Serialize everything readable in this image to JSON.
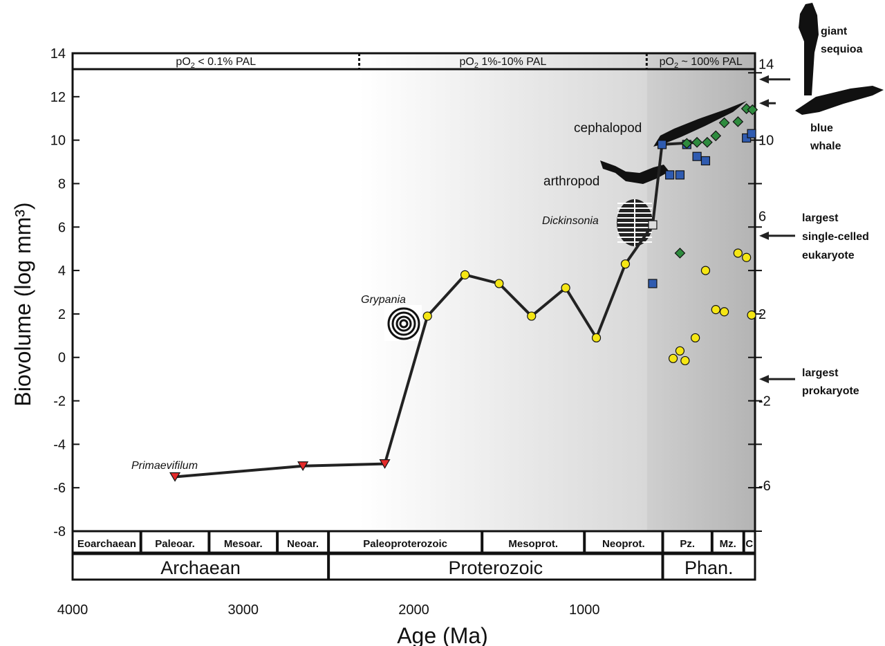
{
  "chart_data": {
    "type": "scatter",
    "xlabel": "Age (Ma)",
    "ylabel": "Biovolume (log mm³)",
    "xlim": [
      4000,
      0
    ],
    "ylim": [
      -8,
      14
    ],
    "x_ticks": [
      "4000",
      "3000",
      "2000",
      "1000"
    ],
    "y_ticks": [
      "14",
      "12",
      "10",
      "8",
      "6",
      "4",
      "2",
      "0",
      "-2",
      "-4",
      "-6",
      "-8"
    ],
    "right_axis_ticks": [
      "14",
      "10",
      "6",
      "2",
      "-2",
      "-6"
    ],
    "oxygen_bands": [
      {
        "label_pre": "pO",
        "label_post": " < 0.1% PAL",
        "from": 4000,
        "to": 2320
      },
      {
        "label_pre": "pO",
        "label_post": " 1%-10% PAL",
        "from": 2320,
        "to": 635
      },
      {
        "label_pre": "pO",
        "label_post": " ~ 100% PAL",
        "from": 635,
        "to": 0
      }
    ],
    "oxygen_subscript": "2",
    "eras": [
      {
        "label": "Eoarchaean",
        "from": 4000,
        "to": 3600
      },
      {
        "label": "Paleoar.",
        "from": 3600,
        "to": 3200
      },
      {
        "label": "Mesoar.",
        "from": 3200,
        "to": 2800
      },
      {
        "label": "Neoar.",
        "from": 2800,
        "to": 2500
      },
      {
        "label": "Paleoproterozoic",
        "from": 2500,
        "to": 1600
      },
      {
        "label": "Mesoprot.",
        "from": 1600,
        "to": 1000
      },
      {
        "label": "Neoprot.",
        "from": 1000,
        "to": 541
      },
      {
        "label": "Pz.",
        "from": 541,
        "to": 252
      },
      {
        "label": "Mz.",
        "from": 252,
        "to": 66
      },
      {
        "label": "C",
        "from": 66,
        "to": 0
      }
    ],
    "eons": [
      {
        "label": "Archaean",
        "from": 4000,
        "to": 2500
      },
      {
        "label": "Proterozoic",
        "from": 2500,
        "to": 541
      },
      {
        "label": "Phan.",
        "from": 541,
        "to": 0
      }
    ],
    "max_size_line": [
      [
        3400,
        -5.5
      ],
      [
        2650,
        -5.0
      ],
      [
        2170,
        -4.9
      ],
      [
        1920,
        1.9
      ],
      [
        1700,
        3.8
      ],
      [
        1500,
        3.4
      ],
      [
        1310,
        1.9
      ],
      [
        1110,
        3.2
      ],
      [
        930,
        0.9
      ],
      [
        760,
        4.3
      ],
      [
        600,
        6.1
      ],
      [
        545,
        9.8
      ],
      [
        330,
        9.9
      ]
    ],
    "series": [
      {
        "marker": "triangle",
        "color": "#e52b2b",
        "points": [
          [
            3400,
            -5.5
          ],
          [
            2650,
            -5.0
          ],
          [
            2170,
            -4.9
          ]
        ]
      },
      {
        "marker": "circle",
        "color": "#f5e614",
        "points": [
          [
            1920,
            1.9
          ],
          [
            1700,
            3.8
          ],
          [
            1500,
            3.4
          ],
          [
            1310,
            1.9
          ],
          [
            1110,
            3.2
          ],
          [
            930,
            0.9
          ],
          [
            760,
            4.3
          ],
          [
            480,
            -0.05
          ],
          [
            440,
            0.3
          ],
          [
            410,
            -0.15
          ],
          [
            350,
            0.9
          ],
          [
            290,
            4.0
          ],
          [
            230,
            2.2
          ],
          [
            180,
            2.1
          ],
          [
            100,
            4.8
          ],
          [
            50,
            4.6
          ],
          [
            20,
            1.95
          ]
        ]
      },
      {
        "marker": "square",
        "color": "#2f5bb0",
        "points": [
          [
            600,
            3.4
          ],
          [
            545,
            9.8
          ],
          [
            440,
            8.4
          ],
          [
            500,
            8.4
          ],
          [
            340,
            9.25
          ],
          [
            290,
            9.05
          ],
          [
            400,
            9.8
          ],
          [
            50,
            10.1
          ],
          [
            20,
            10.3
          ]
        ]
      },
      {
        "marker": "square",
        "color": "#dddddd",
        "points": [
          [
            600,
            6.1
          ]
        ]
      },
      {
        "marker": "diamond",
        "color": "#2e8b3e",
        "points": [
          [
            440,
            4.8
          ],
          [
            400,
            9.85
          ],
          [
            340,
            9.9
          ],
          [
            280,
            9.9
          ],
          [
            230,
            10.2
          ],
          [
            180,
            10.8
          ],
          [
            100,
            10.85
          ],
          [
            50,
            11.45
          ],
          [
            15,
            11.4
          ]
        ]
      }
    ],
    "annotations": [
      {
        "text": "Primaevifilum",
        "style": "italic"
      },
      {
        "text": "Grypania",
        "style": "italic"
      },
      {
        "text": "Dickinsonia",
        "style": "italic"
      },
      {
        "text": "arthropod",
        "style": "normal"
      },
      {
        "text": "cephalopod",
        "style": "normal"
      }
    ],
    "side_labels": [
      {
        "lines": [
          "giant",
          "sequioa"
        ],
        "arrow_at": 12.8
      },
      {
        "lines": [
          "blue",
          "whale"
        ],
        "arrow_at": 11.7
      },
      {
        "lines": [
          "largest",
          "single-celled",
          "eukaryote"
        ],
        "arrow_at": 5.6
      },
      {
        "lines": [
          "largest",
          "prokaryote"
        ],
        "arrow_at": -1.0
      }
    ]
  }
}
